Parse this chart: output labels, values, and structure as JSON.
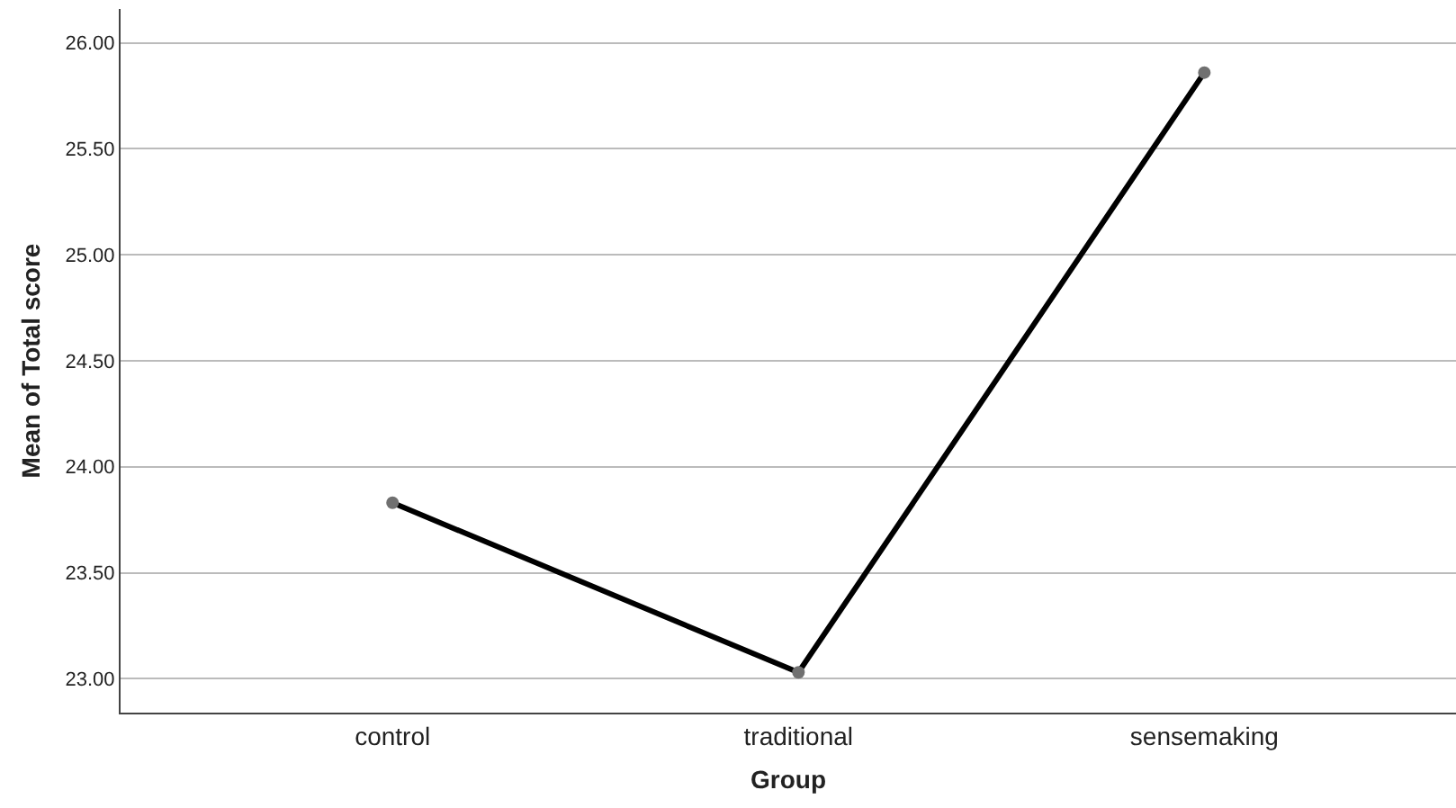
{
  "chart_data": {
    "type": "line",
    "xlabel": "Group",
    "ylabel": "Mean of Total score",
    "categories": [
      "control",
      "traditional",
      "sensemaking"
    ],
    "series": [
      {
        "color": "#000000",
        "values": [
          23.83,
          23.03,
          25.86
        ]
      }
    ],
    "ylim": [
      22.84,
      26.16
    ],
    "yticks": [
      {
        "value": 23,
        "label": "23.00"
      },
      {
        "value": 23.5,
        "label": "23.50"
      },
      {
        "value": 24,
        "label": "24.00"
      },
      {
        "value": 24.5,
        "label": "24.50"
      },
      {
        "value": 25,
        "label": "25.00"
      },
      {
        "value": 25.5,
        "label": "25.50"
      },
      {
        "value": 26,
        "label": "26.00"
      }
    ],
    "grid": "y",
    "marker": "circle"
  }
}
